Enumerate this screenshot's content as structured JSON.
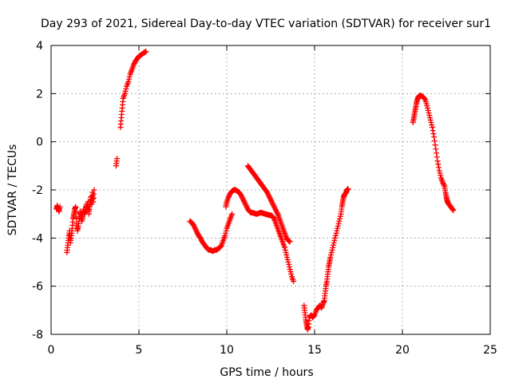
{
  "chart_data": {
    "type": "scatter",
    "title": "Day 293 of 2021, Sidereal Day-to-day VTEC variation (SDTVAR) for receiver sur1",
    "xlabel": "GPS time / hours",
    "ylabel": "SDTVAR / TECUs",
    "xlim": [
      0,
      25
    ],
    "ylim": [
      -8,
      4
    ],
    "xticks": [
      0,
      5,
      10,
      15,
      20,
      25
    ],
    "yticks": [
      -8,
      -6,
      -4,
      -2,
      0,
      2,
      4
    ],
    "grid": true,
    "marker": "+",
    "color": "#ff0000",
    "series": [
      {
        "name": "sur1",
        "segments": [
          [
            [
              0.3,
              -2.8
            ],
            [
              0.35,
              -2.65
            ],
            [
              0.4,
              -2.75
            ],
            [
              0.45,
              -2.9
            ],
            [
              0.5,
              -2.7
            ]
          ],
          [
            [
              0.9,
              -4.6
            ],
            [
              0.95,
              -4.3
            ],
            [
              1.0,
              -4.0
            ],
            [
              1.05,
              -3.7
            ],
            [
              1.1,
              -4.2
            ],
            [
              1.15,
              -3.9
            ],
            [
              1.2,
              -3.6
            ],
            [
              1.25,
              -3.2
            ],
            [
              1.3,
              -3.0
            ],
            [
              1.35,
              -2.8
            ],
            [
              1.4,
              -2.7
            ],
            [
              1.45,
              -3.4
            ],
            [
              1.5,
              -3.7
            ],
            [
              1.55,
              -3.5
            ],
            [
              1.6,
              -3.2
            ],
            [
              1.65,
              -2.9
            ],
            [
              1.7,
              -3.1
            ],
            [
              1.75,
              -3.3
            ],
            [
              1.8,
              -3.1
            ],
            [
              1.85,
              -2.8
            ],
            [
              1.9,
              -3.0
            ],
            [
              1.95,
              -2.9
            ],
            [
              2.0,
              -2.6
            ],
            [
              2.05,
              -2.8
            ],
            [
              2.1,
              -2.5
            ],
            [
              2.15,
              -3.0
            ],
            [
              2.2,
              -2.7
            ],
            [
              2.25,
              -2.3
            ],
            [
              2.3,
              -2.6
            ],
            [
              2.35,
              -2.1
            ],
            [
              2.4,
              -2.5
            ],
            [
              2.45,
              -2.0
            ]
          ],
          [
            [
              3.7,
              -1.0
            ],
            [
              3.75,
              -0.7
            ]
          ],
          [
            [
              3.95,
              0.6
            ],
            [
              4.0,
              1.0
            ],
            [
              4.05,
              1.4
            ],
            [
              4.1,
              1.8
            ],
            [
              4.2,
              2.0
            ],
            [
              4.3,
              2.3
            ],
            [
              4.4,
              2.5
            ],
            [
              4.5,
              2.8
            ],
            [
              4.6,
              3.0
            ],
            [
              4.7,
              3.2
            ],
            [
              4.8,
              3.35
            ],
            [
              4.9,
              3.45
            ],
            [
              5.0,
              3.55
            ],
            [
              5.1,
              3.6
            ],
            [
              5.2,
              3.65
            ],
            [
              5.3,
              3.7
            ],
            [
              5.4,
              3.75
            ]
          ],
          [
            [
              7.9,
              -3.3
            ],
            [
              8.0,
              -3.35
            ],
            [
              8.1,
              -3.45
            ],
            [
              8.2,
              -3.6
            ],
            [
              8.3,
              -3.75
            ],
            [
              8.4,
              -3.9
            ],
            [
              8.5,
              -4.0
            ],
            [
              8.6,
              -4.15
            ],
            [
              8.7,
              -4.25
            ],
            [
              8.8,
              -4.35
            ],
            [
              8.9,
              -4.45
            ],
            [
              9.0,
              -4.5
            ],
            [
              9.1,
              -4.5
            ],
            [
              9.2,
              -4.55
            ],
            [
              9.3,
              -4.5
            ],
            [
              9.4,
              -4.5
            ],
            [
              9.5,
              -4.45
            ],
            [
              9.6,
              -4.4
            ],
            [
              9.7,
              -4.3
            ],
            [
              9.8,
              -4.1
            ],
            [
              9.9,
              -3.9
            ],
            [
              10.0,
              -3.6
            ],
            [
              10.1,
              -3.4
            ],
            [
              10.2,
              -3.2
            ],
            [
              10.3,
              -3.0
            ]
          ],
          [
            [
              9.95,
              -2.7
            ],
            [
              10.0,
              -2.5
            ],
            [
              10.1,
              -2.3
            ],
            [
              10.2,
              -2.15
            ],
            [
              10.3,
              -2.05
            ],
            [
              10.4,
              -2.0
            ],
            [
              10.5,
              -2.0
            ],
            [
              10.6,
              -2.05
            ],
            [
              10.7,
              -2.1
            ],
            [
              10.8,
              -2.2
            ],
            [
              10.9,
              -2.35
            ],
            [
              11.0,
              -2.5
            ],
            [
              11.1,
              -2.65
            ],
            [
              11.2,
              -2.8
            ],
            [
              11.3,
              -2.9
            ],
            [
              11.4,
              -2.95
            ],
            [
              11.5,
              -2.95
            ],
            [
              11.6,
              -2.98
            ],
            [
              11.7,
              -3.0
            ],
            [
              11.8,
              -2.98
            ],
            [
              11.9,
              -2.95
            ],
            [
              12.0,
              -2.95
            ],
            [
              12.1,
              -2.98
            ],
            [
              12.2,
              -3.0
            ],
            [
              12.3,
              -3.02
            ],
            [
              12.4,
              -3.05
            ],
            [
              12.5,
              -3.05
            ],
            [
              12.6,
              -3.1
            ],
            [
              12.7,
              -3.2
            ],
            [
              12.8,
              -3.4
            ],
            [
              12.9,
              -3.6
            ],
            [
              13.0,
              -3.8
            ],
            [
              13.1,
              -4.0
            ],
            [
              13.2,
              -4.2
            ],
            [
              13.3,
              -4.4
            ],
            [
              13.4,
              -4.7
            ],
            [
              13.5,
              -5.0
            ],
            [
              13.6,
              -5.3
            ],
            [
              13.7,
              -5.6
            ],
            [
              13.8,
              -5.8
            ]
          ],
          [
            [
              11.2,
              -1.0
            ],
            [
              11.3,
              -1.1
            ],
            [
              11.4,
              -1.2
            ],
            [
              11.5,
              -1.3
            ],
            [
              11.6,
              -1.4
            ],
            [
              11.7,
              -1.5
            ],
            [
              11.8,
              -1.6
            ],
            [
              11.9,
              -1.7
            ],
            [
              12.0,
              -1.8
            ],
            [
              12.1,
              -1.9
            ],
            [
              12.2,
              -2.0
            ],
            [
              12.3,
              -2.1
            ],
            [
              12.4,
              -2.25
            ],
            [
              12.5,
              -2.4
            ],
            [
              12.6,
              -2.55
            ],
            [
              12.7,
              -2.7
            ],
            [
              12.8,
              -2.85
            ],
            [
              12.9,
              -3.0
            ],
            [
              13.0,
              -3.2
            ],
            [
              13.1,
              -3.4
            ],
            [
              13.2,
              -3.6
            ],
            [
              13.3,
              -3.8
            ],
            [
              13.4,
              -4.0
            ],
            [
              13.5,
              -4.1
            ],
            [
              13.6,
              -4.15
            ]
          ],
          [
            [
              14.4,
              -6.8
            ],
            [
              14.45,
              -7.1
            ],
            [
              14.5,
              -7.4
            ],
            [
              14.55,
              -7.6
            ],
            [
              14.6,
              -7.8
            ],
            [
              14.65,
              -7.7
            ],
            [
              14.7,
              -7.3
            ],
            [
              14.8,
              -7.2
            ],
            [
              14.9,
              -7.3
            ],
            [
              15.0,
              -7.2
            ],
            [
              15.1,
              -7.0
            ],
            [
              15.2,
              -6.9
            ],
            [
              15.3,
              -6.8
            ],
            [
              15.4,
              -6.9
            ],
            [
              15.5,
              -6.7
            ],
            [
              15.55,
              -6.6
            ],
            [
              15.6,
              -6.3
            ],
            [
              15.65,
              -6.0
            ],
            [
              15.7,
              -5.8
            ],
            [
              15.75,
              -5.5
            ],
            [
              15.8,
              -5.2
            ],
            [
              15.85,
              -5.0
            ],
            [
              15.9,
              -4.8
            ],
            [
              16.0,
              -4.5
            ],
            [
              16.1,
              -4.2
            ],
            [
              16.2,
              -3.9
            ],
            [
              16.3,
              -3.6
            ],
            [
              16.4,
              -3.3
            ],
            [
              16.5,
              -3.0
            ],
            [
              16.55,
              -2.7
            ],
            [
              16.6,
              -2.5
            ],
            [
              16.65,
              -2.3
            ],
            [
              16.7,
              -2.2
            ],
            [
              16.8,
              -2.1
            ],
            [
              16.85,
              -2.0
            ],
            [
              16.9,
              -1.95
            ]
          ],
          [
            [
              20.6,
              0.8
            ],
            [
              20.65,
              1.0
            ],
            [
              20.7,
              1.2
            ],
            [
              20.75,
              1.4
            ],
            [
              20.8,
              1.6
            ],
            [
              20.85,
              1.75
            ],
            [
              20.9,
              1.85
            ],
            [
              20.95,
              1.9
            ],
            [
              21.0,
              1.92
            ],
            [
              21.1,
              1.9
            ],
            [
              21.2,
              1.85
            ],
            [
              21.3,
              1.75
            ],
            [
              21.4,
              1.5
            ],
            [
              21.5,
              1.2
            ],
            [
              21.6,
              0.9
            ],
            [
              21.7,
              0.6
            ],
            [
              21.8,
              0.2
            ],
            [
              21.9,
              -0.3
            ],
            [
              22.0,
              -0.8
            ],
            [
              22.1,
              -1.2
            ],
            [
              22.2,
              -1.5
            ],
            [
              22.3,
              -1.7
            ],
            [
              22.4,
              -1.85
            ],
            [
              22.45,
              -2.1
            ],
            [
              22.5,
              -2.3
            ],
            [
              22.55,
              -2.45
            ],
            [
              22.6,
              -2.55
            ],
            [
              22.7,
              -2.65
            ],
            [
              22.8,
              -2.75
            ],
            [
              22.9,
              -2.85
            ]
          ]
        ]
      }
    ]
  }
}
